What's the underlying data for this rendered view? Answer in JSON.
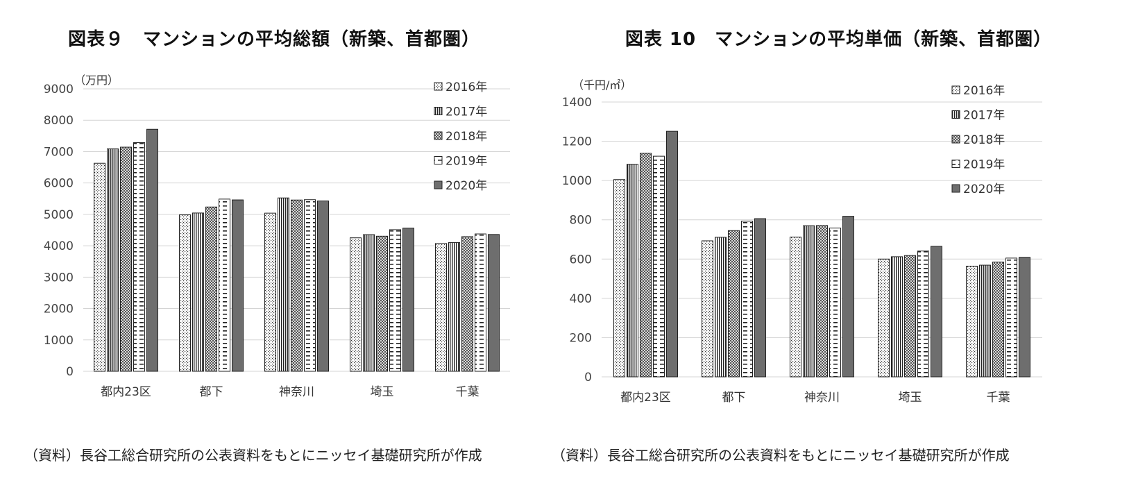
{
  "left": {
    "title": "図表９　マンションの平均総額（新築、首都圏）",
    "source": "（資料）長谷工総合研究所の公表資料をもとにニッセイ基礎研究所が作成"
  },
  "right": {
    "title": "図表 10　マンションの平均単価（新築、首都圏）",
    "source": "（資料）長谷工総合研究所の公表資料をもとにニッセイ基礎研究所が作成"
  },
  "chart_data": [
    {
      "type": "bar",
      "unit_label": "（万円）",
      "categories": [
        "都内23区",
        "都下",
        "神奈川",
        "埼玉",
        "千葉"
      ],
      "ylim": [
        0,
        9000
      ],
      "yticks": [
        0,
        1000,
        2000,
        3000,
        4000,
        5000,
        6000,
        7000,
        8000,
        9000
      ],
      "grid": true,
      "legend_position": "top-right",
      "series": [
        {
          "name": "2016年",
          "values": [
            6629,
            4985,
            5039,
            4253,
            4072
          ]
        },
        {
          "name": "2017年",
          "values": [
            7089,
            5044,
            5524,
            4355,
            4104
          ]
        },
        {
          "name": "2018年",
          "values": [
            7142,
            5235,
            5457,
            4305,
            4291
          ]
        },
        {
          "name": "2019年",
          "values": [
            7286,
            5487,
            5468,
            4513,
            4377
          ]
        },
        {
          "name": "2020年",
          "values": [
            7712,
            5461,
            5429,
            4562,
            4360
          ]
        }
      ]
    },
    {
      "type": "bar",
      "unit_label": "（千円/㎡）",
      "categories": [
        "都内23区",
        "都下",
        "神奈川",
        "埼玉",
        "千葉"
      ],
      "ylim": [
        0,
        1400
      ],
      "yticks": [
        0,
        200,
        400,
        600,
        800,
        1000,
        1200,
        1400
      ],
      "grid": true,
      "legend_position": "top-right",
      "series": [
        {
          "name": "2016年",
          "values": [
            1005,
            693,
            712,
            600,
            564
          ]
        },
        {
          "name": "2017年",
          "values": [
            1083,
            711,
            770,
            612,
            569
          ]
        },
        {
          "name": "2018年",
          "values": [
            1139,
            745,
            771,
            618,
            585
          ]
        },
        {
          "name": "2019年",
          "values": [
            1124,
            793,
            758,
            641,
            605
          ]
        },
        {
          "name": "2020年",
          "values": [
            1251,
            806,
            818,
            665,
            609
          ]
        }
      ]
    }
  ]
}
